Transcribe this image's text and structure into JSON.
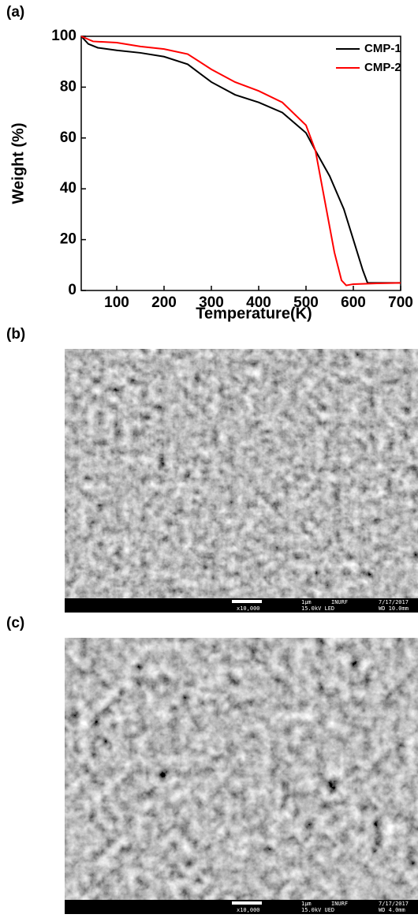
{
  "chart_data": {
    "type": "line",
    "y_label": "Weight (%)",
    "x_label": "Temperature(K)",
    "xlim": [
      25,
      700
    ],
    "xticks": [
      100,
      200,
      300,
      400,
      500,
      600,
      700
    ],
    "ylim": [
      0,
      100
    ],
    "yticks": [
      0,
      20,
      40,
      60,
      80,
      100
    ],
    "legend": "upper right",
    "series": [
      {
        "name": "CMP-1",
        "color": "#000000",
        "x": [
          25,
          40,
          60,
          100,
          150,
          200,
          250,
          300,
          350,
          400,
          450,
          500,
          520,
          550,
          580,
          600,
          620,
          630,
          650,
          700
        ],
        "values": [
          100,
          97,
          95.5,
          94.5,
          93.5,
          92,
          89,
          82,
          77,
          74,
          70,
          62,
          55,
          45,
          32,
          20,
          8,
          3,
          3,
          3
        ]
      },
      {
        "name": "CMP-2",
        "color": "#ff0000",
        "x": [
          25,
          50,
          100,
          150,
          200,
          250,
          300,
          350,
          400,
          450,
          500,
          520,
          540,
          560,
          575,
          585,
          600,
          650,
          700
        ],
        "values": [
          100,
          98,
          97.5,
          96,
          95,
          93,
          87,
          82,
          78.5,
          74,
          65,
          55,
          35,
          15,
          4,
          2,
          2.5,
          2.8,
          3
        ]
      }
    ]
  },
  "panel_labels": [
    "(a)",
    "(b)",
    "(c)"
  ],
  "sem_images": [
    {
      "magnification": "x10,000",
      "scale": "1μm",
      "institution": "INURF",
      "voltage": "15.0kV LED",
      "date": "7/17/2017",
      "working_distance": "WD 10.0mm"
    },
    {
      "magnification": "x10,000",
      "scale": "1μm",
      "institution": "INURF",
      "voltage": "15.0kV UED",
      "date": "7/17/2017",
      "working_distance": "WD 4.0mm"
    }
  ]
}
